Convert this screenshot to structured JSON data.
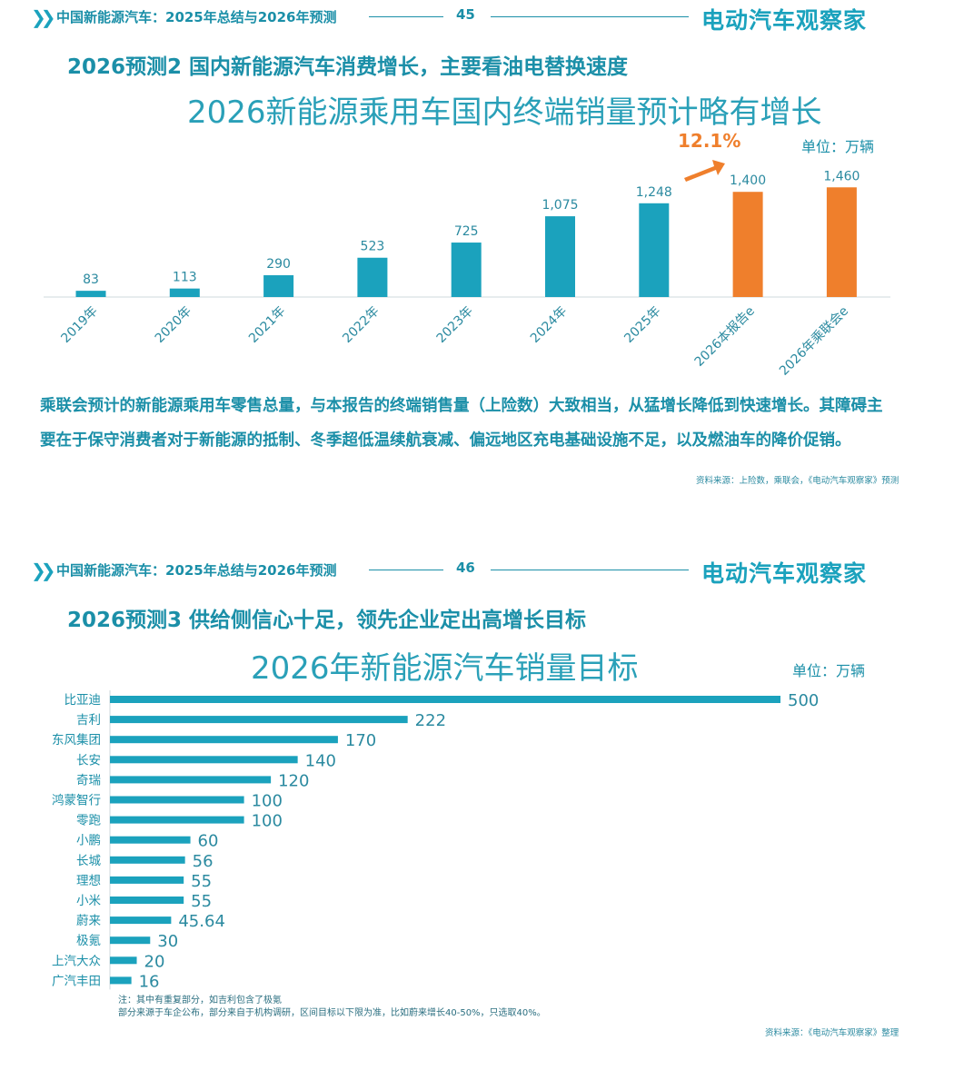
{
  "pages": [
    {
      "header": {
        "title": "中国新能源汽车：2025年总结与2026年预测",
        "page_number": "45",
        "brand": "电动汽车观察家"
      },
      "section_title": "2026预测2 国内新能源汽车消费增长，主要看油电替换速度",
      "chart_title": "2026新能源乘用车国内终端销量预计略有增长",
      "unit": "单位：万辆",
      "growth_label": "12.1%",
      "body": "乘联会预计的新能源乘用车零售总量，与本报告的终端销售量（上险数）大致相当，从猛增长降低到快速增长。其障碍主要在于保守消费者对于新能源的抵制、冬季超低温续航衰减、偏远地区充电基础设施不足，以及燃油车的降价促销。",
      "source": "资料来源：上险数，乘联会，《电动汽车观察家》预测"
    },
    {
      "header": {
        "title": "中国新能源汽车：2025年总结与2026年预测",
        "page_number": "46",
        "brand": "电动汽车观察家"
      },
      "section_title": "2026预测3 供给侧信心十足，领先企业定出高增长目标",
      "chart_title": "2026年新能源汽车销量目标",
      "unit": "单位：万辆",
      "note_line1": "注：其中有重复部分，如吉利包含了极氪",
      "note_line2": "部分来源于车企公布，部分来自于机构调研，区间目标以下限为准，比如蔚来增长40-50%，只选取40%。",
      "source": "资料来源：《电动汽车观察家》整理"
    }
  ],
  "colors": {
    "teal": "#1ba2bd",
    "orange": "#ef7f2c",
    "text": "#1b8fa8"
  },
  "chart_data": [
    {
      "type": "bar",
      "title": "2026新能源乘用车国内终端销量预计略有增长",
      "unit": "单位：万辆",
      "categories": [
        "2019年",
        "2020年",
        "2021年",
        "2022年",
        "2023年",
        "2024年",
        "2025年",
        "2026本报告e",
        "2026年乘联会e"
      ],
      "values": [
        83,
        113,
        290,
        523,
        725,
        1075,
        1248,
        1400,
        1460
      ],
      "value_labels": [
        "83",
        "113",
        "290",
        "523",
        "725",
        "1,075",
        "1,248",
        "1,400",
        "1,460"
      ],
      "bar_colors": [
        "#1ba2bd",
        "#1ba2bd",
        "#1ba2bd",
        "#1ba2bd",
        "#1ba2bd",
        "#1ba2bd",
        "#1ba2bd",
        "#ef7f2c",
        "#ef7f2c"
      ],
      "annotation": "12.1%",
      "grid": false
    },
    {
      "type": "bar",
      "orientation": "horizontal",
      "title": "2026年新能源汽车销量目标",
      "unit": "单位：万辆",
      "categories": [
        "比亚迪",
        "吉利",
        "东风集团",
        "长安",
        "奇瑞",
        "鸿蒙智行",
        "零跑",
        "小鹏",
        "长城",
        "理想",
        "小米",
        "蔚来",
        "极氪",
        "上汽大众",
        "广汽丰田"
      ],
      "values": [
        500,
        222,
        170,
        140,
        120,
        100,
        100,
        60,
        56,
        55,
        55,
        45.64,
        30,
        20,
        16
      ],
      "value_labels": [
        "500",
        "222",
        "170",
        "140",
        "120",
        "100",
        "100",
        "60",
        "56",
        "55",
        "55",
        "45.64",
        "30",
        "20",
        "16"
      ],
      "grid": false
    }
  ]
}
